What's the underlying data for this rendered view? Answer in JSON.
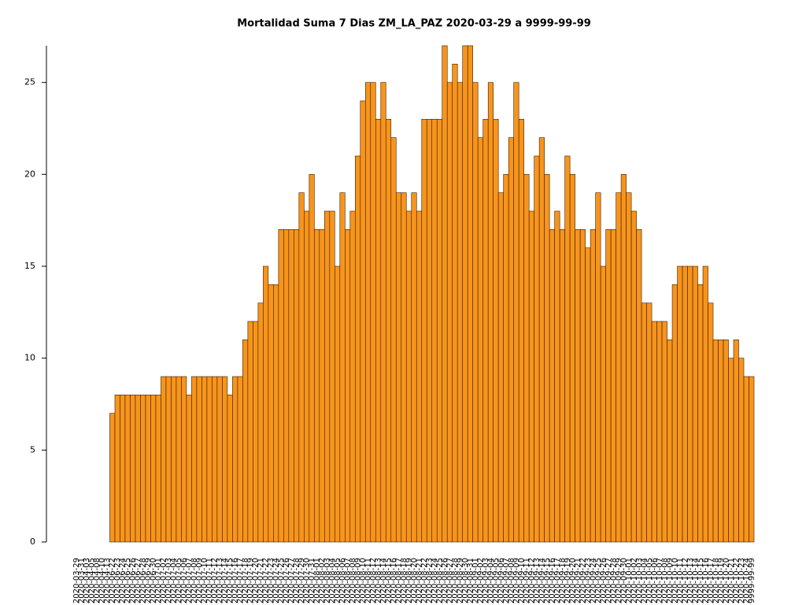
{
  "chart_data": {
    "type": "bar",
    "title": "Mortalidad Suma 7 Dias ZM_LA_PAZ 2020-03-29 a 9999-99-99",
    "categories": [
      "2020-03-29",
      "2020-03-31",
      "2020-04-03",
      "2020-04-05",
      "2020-04-08",
      "2020-04-10",
      "2020-04-13",
      "2020-06-22",
      "2020-06-23",
      "2020-06-24",
      "2020-06-25",
      "2020-06-26",
      "2020-06-27",
      "2020-06-28",
      "2020-06-29",
      "2020-06-30",
      "2020-07-01",
      "2020-07-02",
      "2020-07-03",
      "2020-07-04",
      "2020-07-05",
      "2020-07-06",
      "2020-07-07",
      "2020-07-08",
      "2020-07-09",
      "2020-07-10",
      "2020-07-11",
      "2020-07-12",
      "2020-07-13",
      "2020-07-14",
      "2020-07-15",
      "2020-07-16",
      "2020-07-17",
      "2020-07-18",
      "2020-07-19",
      "2020-07-20",
      "2020-07-21",
      "2020-07-22",
      "2020-07-23",
      "2020-07-24",
      "2020-07-25",
      "2020-07-26",
      "2020-07-27",
      "2020-07-28",
      "2020-07-29",
      "2020-07-30",
      "2020-07-31",
      "2020-08-01",
      "2020-08-02",
      "2020-08-03",
      "2020-08-04",
      "2020-08-05",
      "2020-08-06",
      "2020-08-07",
      "2020-08-08",
      "2020-08-09",
      "2020-08-10",
      "2020-08-11",
      "2020-08-12",
      "2020-08-13",
      "2020-08-14",
      "2020-08-15",
      "2020-08-16",
      "2020-08-17",
      "2020-08-18",
      "2020-08-19",
      "2020-08-20",
      "2020-08-21",
      "2020-08-22",
      "2020-08-23",
      "2020-08-24",
      "2020-08-25",
      "2020-08-26",
      "2020-08-27",
      "2020-08-28",
      "2020-08-29",
      "2020-08-30",
      "2020-08-31",
      "2020-09-01",
      "2020-09-02",
      "2020-09-03",
      "2020-09-04",
      "2020-09-05",
      "2020-09-06",
      "2020-09-07",
      "2020-09-08",
      "2020-09-09",
      "2020-09-10",
      "2020-09-11",
      "2020-09-12",
      "2020-09-13",
      "2020-09-14",
      "2020-09-15",
      "2020-09-16",
      "2020-09-17",
      "2020-09-18",
      "2020-09-19",
      "2020-09-20",
      "2020-09-21",
      "2020-09-22",
      "2020-09-23",
      "2020-09-24",
      "2020-09-25",
      "2020-09-26",
      "2020-09-27",
      "2020-09-28",
      "2020-09-29",
      "2020-09-30",
      "2020-10-01",
      "2020-10-02",
      "2020-10-03",
      "2020-10-04",
      "2020-10-05",
      "2020-10-06",
      "2020-10-07",
      "2020-10-08",
      "2020-10-09",
      "2020-10-10",
      "2020-10-11",
      "2020-10-12",
      "2020-10-13",
      "2020-10-14",
      "2020-10-15",
      "2020-10-16",
      "2020-10-17",
      "2020-10-18",
      "2020-10-19",
      "2020-10-20",
      "2020-10-21",
      "2020-10-22",
      "2020-10-23",
      "2020-10-24",
      "9999-99-99"
    ],
    "values": [
      0,
      0,
      0,
      0,
      0,
      0,
      0,
      7,
      8,
      8,
      8,
      8,
      8,
      8,
      8,
      8,
      8,
      9,
      9,
      9,
      9,
      9,
      8,
      9,
      9,
      9,
      9,
      9,
      9,
      9,
      8,
      9,
      9,
      11,
      12,
      12,
      13,
      15,
      14,
      14,
      17,
      17,
      17,
      17,
      19,
      18,
      20,
      17,
      17,
      18,
      18,
      15,
      19,
      17,
      18,
      21,
      24,
      25,
      25,
      23,
      25,
      23,
      22,
      19,
      19,
      18,
      19,
      18,
      23,
      23,
      23,
      23,
      27,
      25,
      26,
      25,
      27,
      27,
      25,
      22,
      23,
      25,
      23,
      19,
      20,
      22,
      25,
      23,
      20,
      18,
      21,
      22,
      20,
      17,
      18,
      17,
      21,
      20,
      17,
      17,
      16,
      17,
      19,
      15,
      17,
      17,
      19,
      20,
      19,
      18,
      17,
      13,
      13,
      12,
      12,
      12,
      11,
      14,
      15,
      15,
      15,
      15,
      14,
      15,
      13,
      11,
      11,
      11,
      10,
      11,
      10,
      9,
      9
    ],
    "color": "#f7941d",
    "ylim": [
      0,
      27
    ],
    "yticks": [
      0,
      5,
      10,
      15,
      20,
      25
    ]
  }
}
